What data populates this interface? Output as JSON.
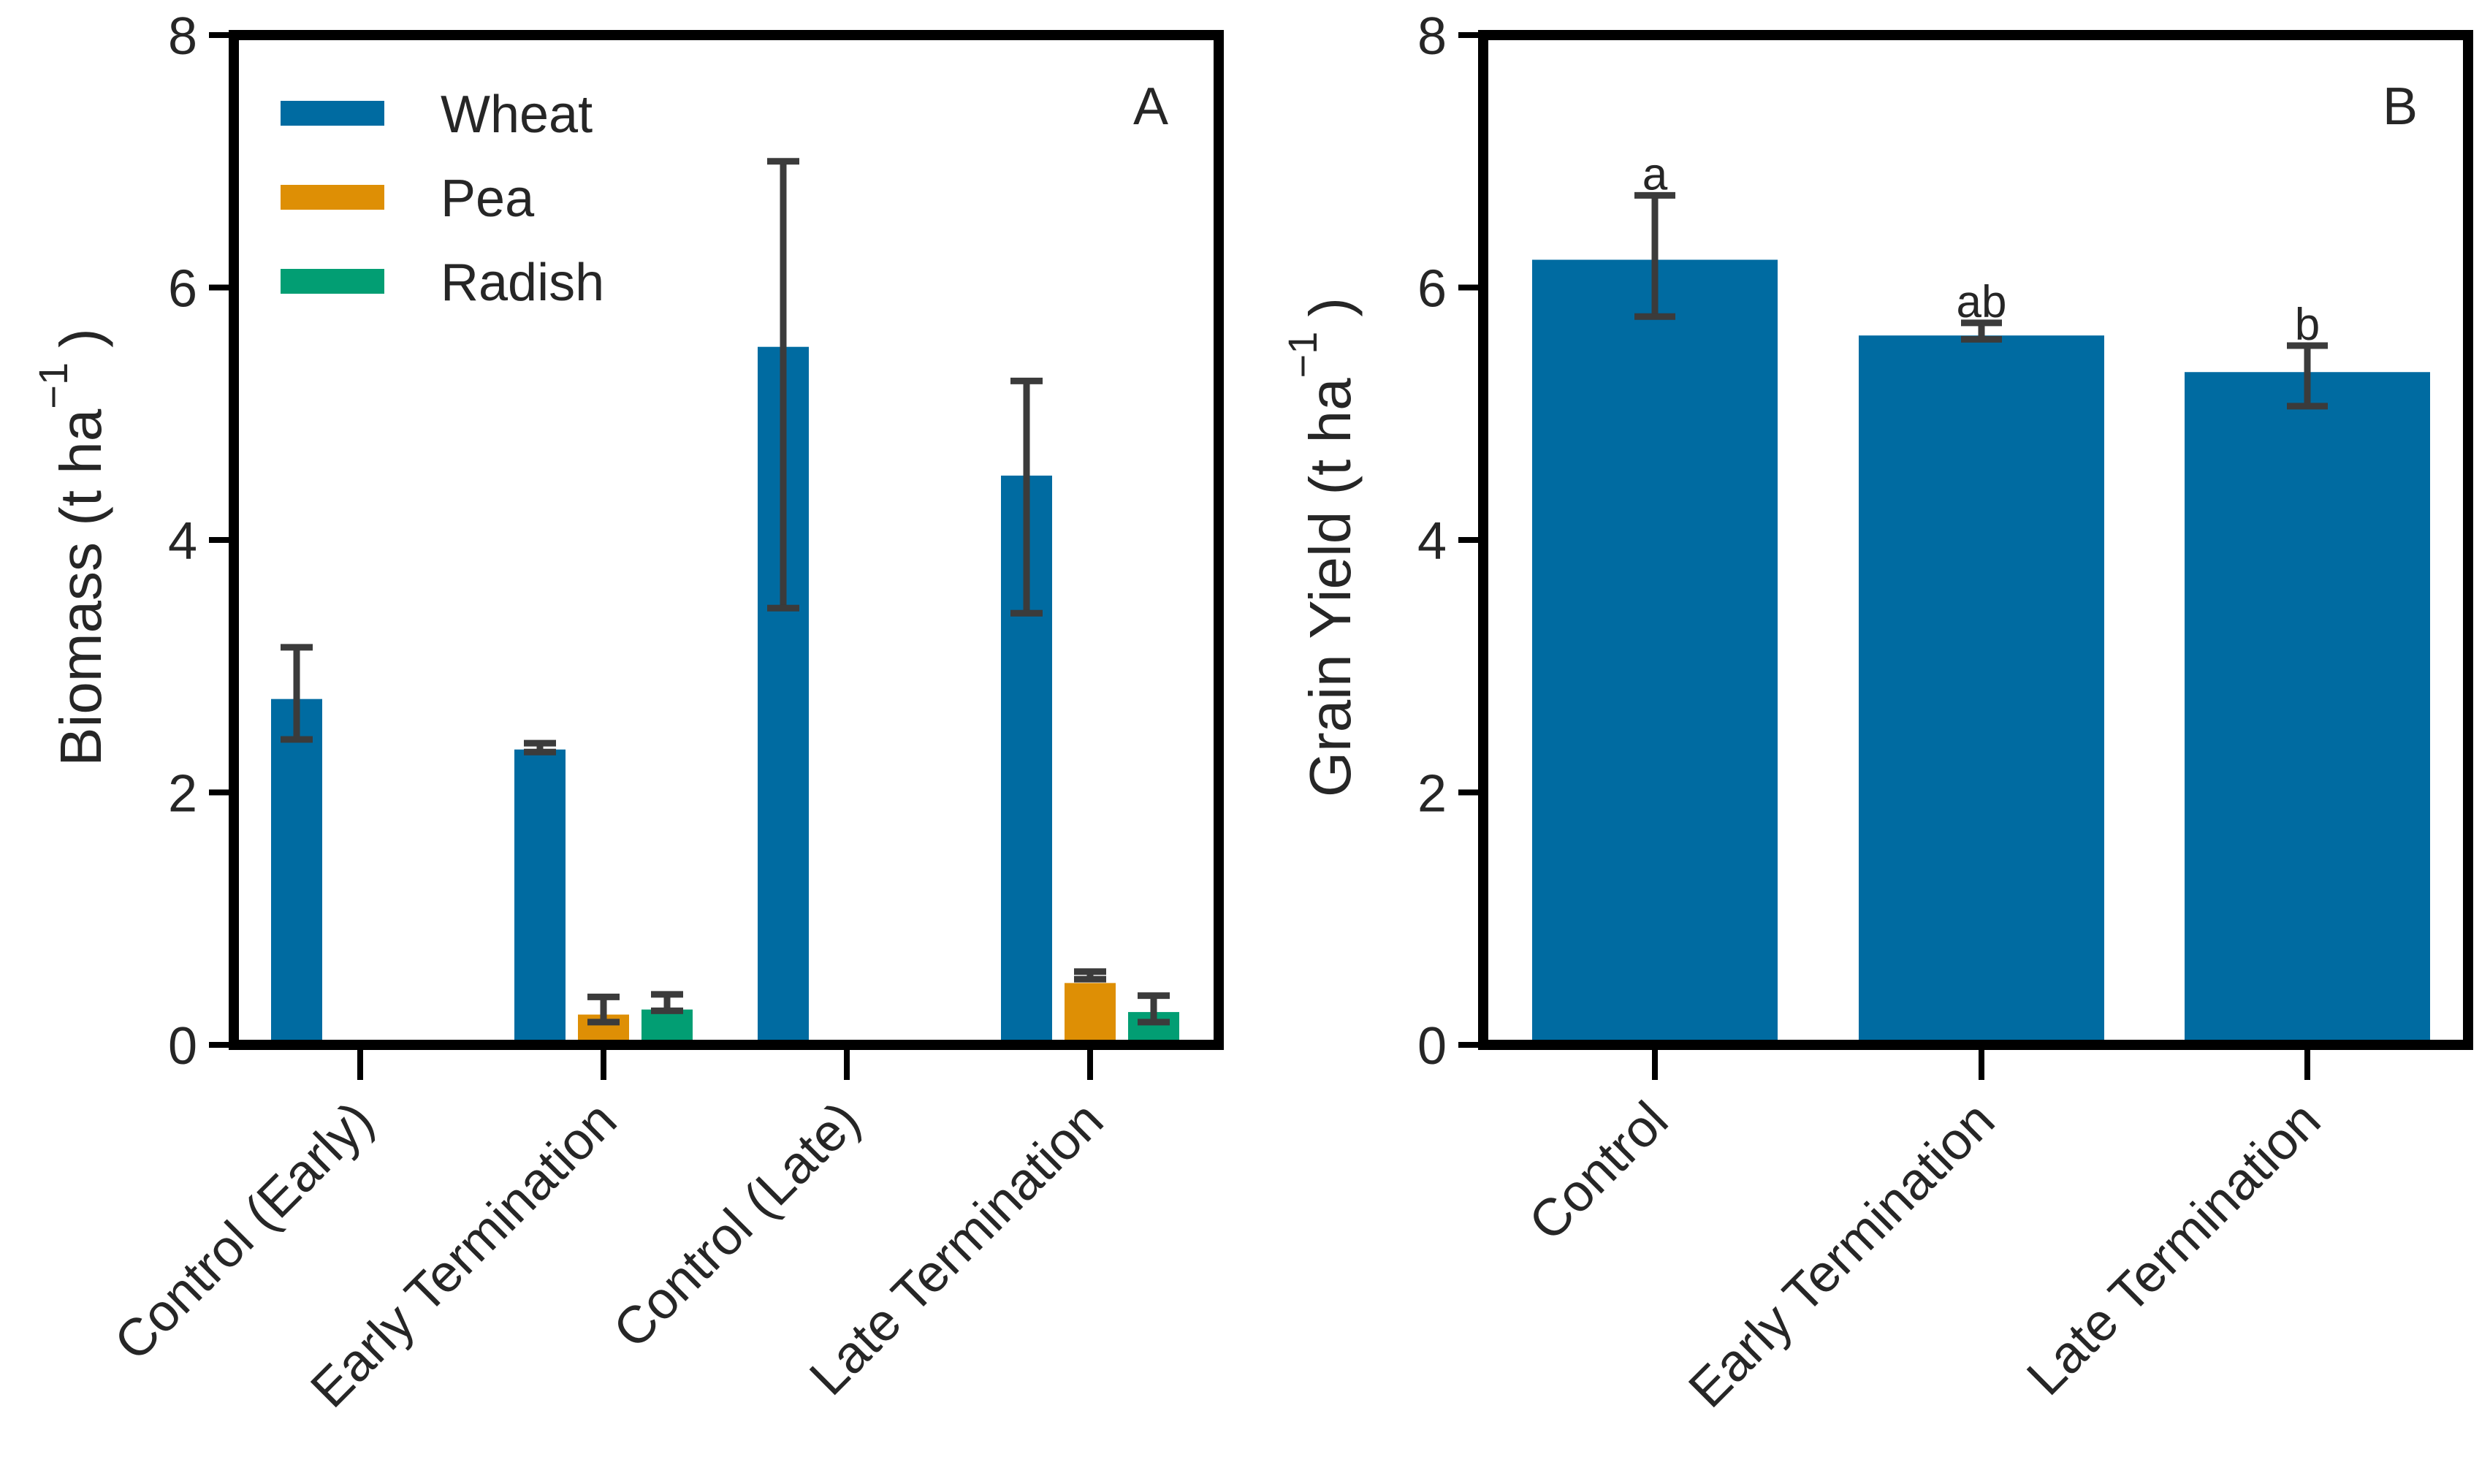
{
  "chart_data": [
    {
      "type": "bar",
      "panel_label": "A",
      "ylabel": "Biomass (t ha",
      "ylabel_superscript": "−1",
      "ylabel_close": ")",
      "ylim": [
        0,
        8
      ],
      "yticks": [
        "0",
        "2",
        "4",
        "6",
        "8"
      ],
      "categories": [
        "Control (Early)",
        "Early Termination",
        "Control (Late)",
        "Late Termination"
      ],
      "legend_position": "top-left",
      "series": [
        {
          "name": "Wheat",
          "color": "#006ba1",
          "values": [
            2.74,
            2.34,
            5.53,
            4.51
          ],
          "error_low": [
            2.42,
            2.32,
            3.46,
            3.42
          ],
          "error_high": [
            3.15,
            2.39,
            7.0,
            5.26
          ]
        },
        {
          "name": "Pea",
          "color": "#de8f05",
          "values": [
            0,
            0.24,
            0,
            0.49
          ],
          "error_low": [
            null,
            0.18,
            null,
            0.52
          ],
          "error_high": [
            null,
            0.38,
            null,
            0.58
          ]
        },
        {
          "name": "Radish",
          "color": "#029e73",
          "values": [
            0,
            0.28,
            0,
            0.26
          ],
          "error_low": [
            null,
            0.27,
            null,
            0.18
          ],
          "error_high": [
            null,
            0.4,
            null,
            0.39
          ]
        }
      ]
    },
    {
      "type": "bar",
      "panel_label": "B",
      "ylabel": "Grain Yield (t ha",
      "ylabel_superscript": "−1",
      "ylabel_close": ")",
      "ylim": [
        0,
        8
      ],
      "yticks": [
        "0",
        "2",
        "4",
        "6",
        "8"
      ],
      "categories": [
        "Control",
        "Early Termination",
        "Late Termination"
      ],
      "series": [
        {
          "color": "#006ba1",
          "values": [
            6.22,
            5.62,
            5.33
          ],
          "error_low": [
            5.77,
            5.59,
            5.06
          ],
          "error_high": [
            6.73,
            5.72,
            5.54
          ]
        }
      ],
      "significance_letters": [
        "a",
        "ab",
        "b"
      ]
    }
  ]
}
